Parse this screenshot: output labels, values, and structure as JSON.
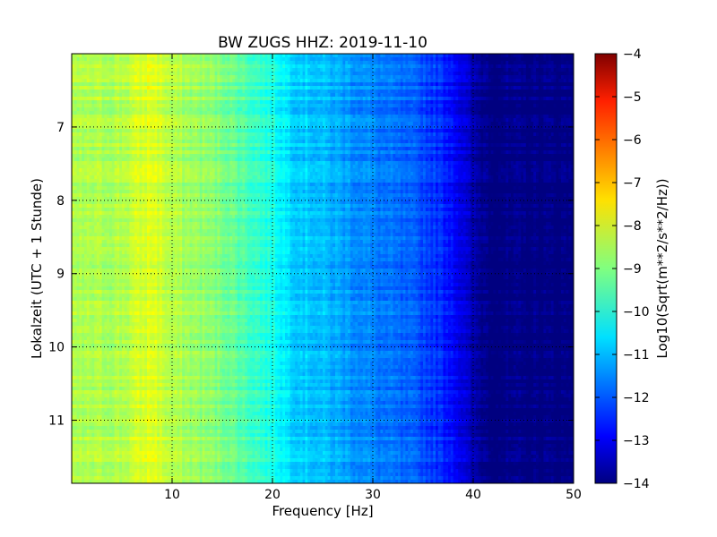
{
  "chart_data": {
    "type": "heatmap",
    "title": "BW ZUGS HHZ: 2019-11-10",
    "xlabel": "Frequency [Hz]",
    "ylabel": "Lokalzeit (UTC + 1 Stunde)",
    "xlim": [
      0,
      50
    ],
    "ylim": [
      11.86,
      6.0
    ],
    "x_ticks": [
      10,
      20,
      30,
      40,
      50
    ],
    "y_ticks": [
      7,
      8,
      9,
      10,
      11
    ],
    "grid": true,
    "colormap": "jet",
    "colorbar": {
      "label": "Log10(Sqrt(m**2/s**2/Hz))",
      "range": [
        -14,
        -4
      ],
      "ticks": [
        -4,
        -5,
        -6,
        -7,
        -8,
        -9,
        -10,
        -11,
        -12,
        -13,
        -14
      ]
    },
    "spectral_profile": {
      "frequency_hz": [
        0,
        5,
        8,
        10,
        15,
        20,
        22,
        25,
        30,
        35,
        38,
        40,
        42,
        50
      ],
      "log10_amplitude": [
        -8.6,
        -8.5,
        -8.0,
        -8.5,
        -9.0,
        -10.0,
        -10.6,
        -10.9,
        -11.5,
        -12.0,
        -12.6,
        -13.6,
        -14.0,
        -14.0
      ]
    }
  }
}
